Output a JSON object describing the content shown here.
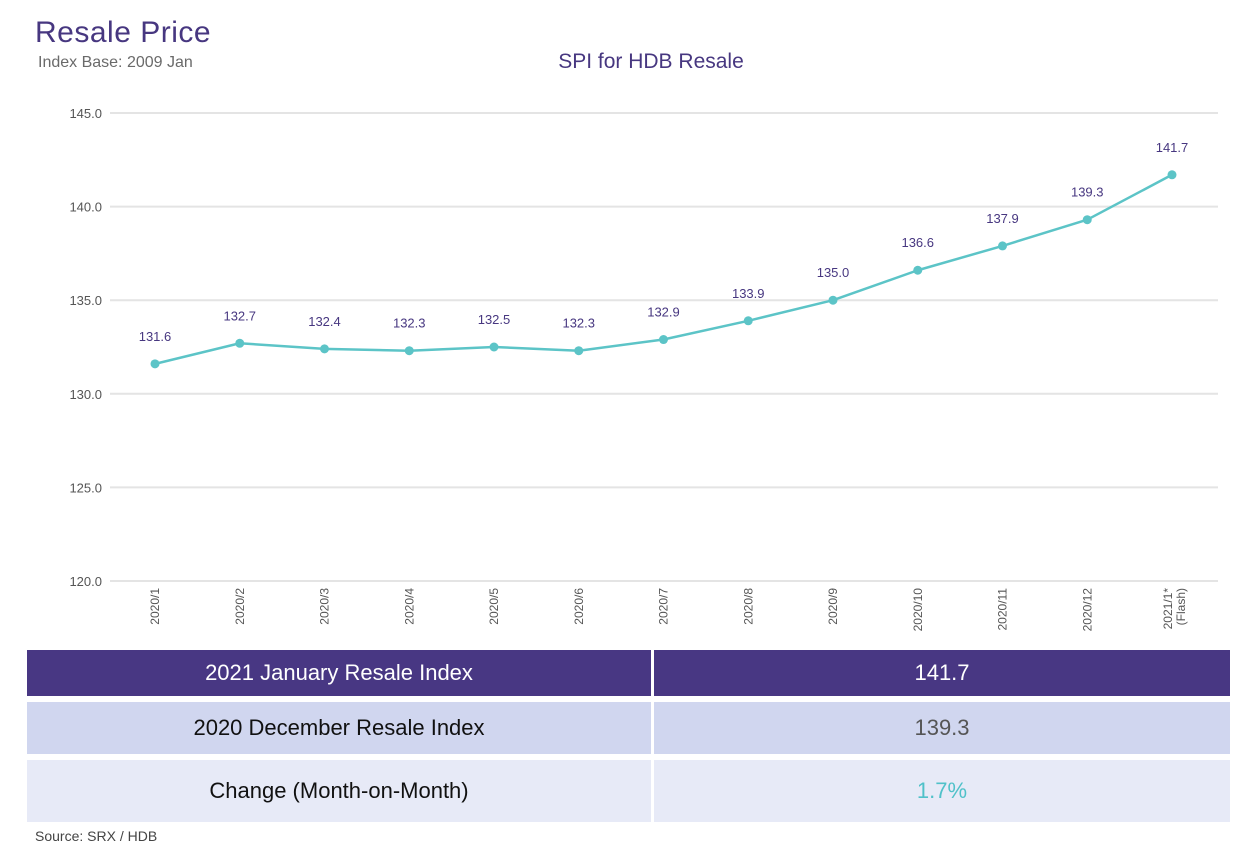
{
  "header": {
    "title": "Resale Price",
    "subtitle": "Index Base: 2009 Jan"
  },
  "colors": {
    "line": "#5cc4c7",
    "grid": "#e4e4e4",
    "title": "#473780",
    "label": "#473780",
    "table_header": "#483783",
    "row2": "#d0d6ef",
    "row3": "#e7eaf7",
    "change_value": "#4fc1c9"
  },
  "chart_data": {
    "type": "line",
    "title": "SPI for HDB Resale",
    "categories": [
      "2020/1",
      "2020/2",
      "2020/3",
      "2020/4",
      "2020/5",
      "2020/6",
      "2020/7",
      "2020/8",
      "2020/9",
      "2020/10",
      "2020/11",
      "2020/12",
      "2021/1*"
    ],
    "category_sublabels": [
      "",
      "",
      "",
      "",
      "",
      "",
      "",
      "",
      "",
      "",
      "",
      "",
      "(Flash)"
    ],
    "series": [
      {
        "values": [
          131.6,
          132.7,
          132.4,
          132.3,
          132.5,
          132.3,
          132.9,
          133.9,
          135.0,
          136.6,
          137.9,
          139.3,
          141.7
        ]
      }
    ],
    "data_labels": [
      "131.6",
      "132.7",
      "132.4",
      "132.3",
      "132.5",
      "132.3",
      "132.9",
      "133.9",
      "135.0",
      "136.6",
      "137.9",
      "139.3",
      "141.7"
    ],
    "y_ticks": [
      "120.0",
      "125.0",
      "130.0",
      "135.0",
      "140.0",
      "145.0"
    ],
    "ylim": [
      120,
      145
    ],
    "grid": true,
    "legend": "none"
  },
  "table": {
    "rows": [
      {
        "label": "2021 January Resale Index",
        "value": "141.7"
      },
      {
        "label": "2020 December Resale Index",
        "value": "139.3"
      },
      {
        "label": "Change (Month-on-Month)",
        "value": "1.7%"
      }
    ]
  },
  "source": "Source: SRX / HDB"
}
